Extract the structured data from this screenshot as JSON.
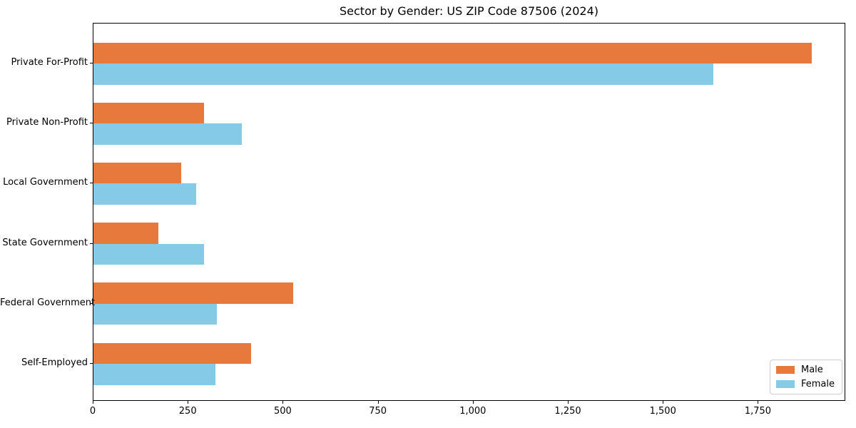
{
  "chart_data": {
    "type": "bar",
    "orientation": "horizontal",
    "title": "Sector by Gender: US ZIP Code 87506 (2024)",
    "categories": [
      "Private For-Profit",
      "Private Non-Profit",
      "Local Government",
      "State Government",
      "Federal Government",
      "Self-Employed"
    ],
    "series": [
      {
        "name": "Male",
        "color": "#E8793D",
        "values": [
          1890,
          290,
          230,
          170,
          525,
          415
        ]
      },
      {
        "name": "Female",
        "color": "#85CBE8",
        "values": [
          1630,
          390,
          270,
          290,
          325,
          320
        ]
      }
    ],
    "xlabel": "",
    "ylabel": "",
    "xlim": [
      0,
      1980
    ],
    "xticks": [
      0,
      250,
      500,
      750,
      1000,
      1250,
      1500,
      1750
    ],
    "xtick_labels": [
      "0",
      "250",
      "500",
      "750",
      "1,000",
      "1,250",
      "1,500",
      "1,750"
    ],
    "grid": false,
    "legend": {
      "position": "lower right"
    },
    "colors": {
      "frame": "#000000",
      "text": "#000000",
      "legend_border": "#cccccc",
      "background": "#ffffff"
    }
  }
}
